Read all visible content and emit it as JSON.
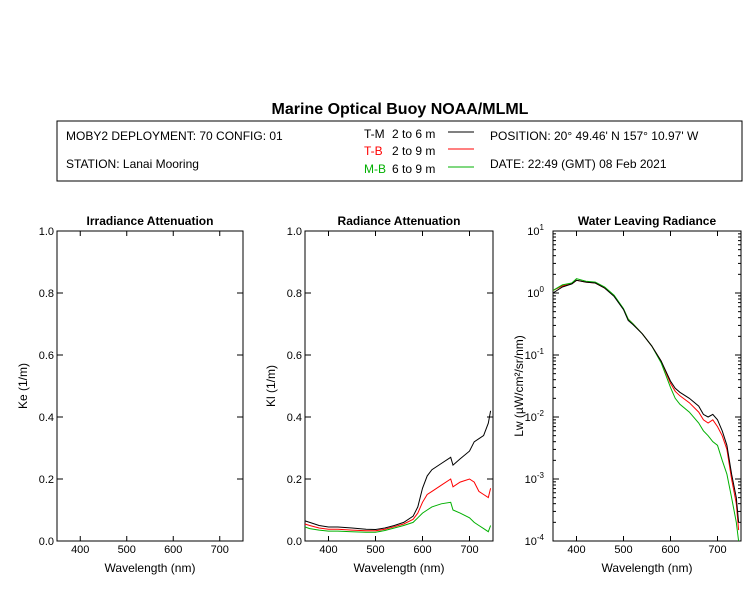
{
  "title": "Marine Optical Buoy NOAA/MLML",
  "header": {
    "deployment": "MOBY2 DEPLOYMENT: 70 CONFIG: 01",
    "station": "STATION: Lanai Mooring",
    "position": "POSITION: 20° 49.46' N   157° 10.97' W",
    "date": "DATE: 22:49 (GMT) 08 Feb 2021",
    "legend": [
      {
        "code": "T-M",
        "range": "2 to 6  m",
        "color": "#000000"
      },
      {
        "code": "T-B",
        "range": "2 to 9  m",
        "color": "#ff0000"
      },
      {
        "code": "M-B",
        "range": "6 to 9  m",
        "color": "#00b000"
      }
    ]
  },
  "chart_data": [
    {
      "type": "line",
      "title": "Irradiance Attenuation",
      "xlabel": "Wavelength (nm)",
      "ylabel": "Ke  (1/m)",
      "xlim": [
        350,
        750
      ],
      "ylim": [
        0,
        1
      ],
      "xticks": [
        400,
        500,
        600,
        700
      ],
      "yticks": [
        "0.0",
        "0.2",
        "0.4",
        "0.6",
        "0.8",
        "1.0"
      ],
      "series": []
    },
    {
      "type": "line",
      "title": "Radiance Attenuation",
      "xlabel": "Wavelength (nm)",
      "ylabel": "Kl  (1/m)",
      "xlim": [
        350,
        750
      ],
      "ylim": [
        0,
        1
      ],
      "xticks": [
        400,
        500,
        600,
        700
      ],
      "yticks": [
        "0.0",
        "0.2",
        "0.4",
        "0.6",
        "0.8",
        "1.0"
      ],
      "series": [
        {
          "name": "T-M",
          "color": "#000000",
          "x": [
            350,
            360,
            380,
            400,
            420,
            450,
            480,
            500,
            520,
            540,
            560,
            580,
            590,
            600,
            610,
            620,
            640,
            660,
            665,
            680,
            700,
            710,
            720,
            730,
            740,
            745
          ],
          "y": [
            0.065,
            0.06,
            0.05,
            0.045,
            0.045,
            0.042,
            0.038,
            0.037,
            0.042,
            0.05,
            0.06,
            0.08,
            0.11,
            0.17,
            0.21,
            0.23,
            0.25,
            0.27,
            0.245,
            0.265,
            0.29,
            0.32,
            0.33,
            0.34,
            0.38,
            0.42
          ]
        },
        {
          "name": "T-B",
          "color": "#ff0000",
          "x": [
            350,
            360,
            380,
            400,
            420,
            450,
            480,
            500,
            520,
            540,
            560,
            580,
            590,
            600,
            610,
            620,
            640,
            660,
            665,
            680,
            700,
            710,
            720,
            730,
            740,
            745
          ],
          "y": [
            0.055,
            0.05,
            0.042,
            0.038,
            0.038,
            0.035,
            0.033,
            0.033,
            0.038,
            0.046,
            0.055,
            0.07,
            0.09,
            0.125,
            0.15,
            0.16,
            0.18,
            0.2,
            0.175,
            0.19,
            0.2,
            0.19,
            0.16,
            0.15,
            0.14,
            0.17
          ]
        },
        {
          "name": "M-B",
          "color": "#00b000",
          "x": [
            350,
            360,
            380,
            400,
            420,
            450,
            480,
            500,
            520,
            540,
            560,
            580,
            590,
            600,
            610,
            620,
            640,
            660,
            665,
            680,
            700,
            710,
            720,
            730,
            740,
            745
          ],
          "y": [
            0.045,
            0.04,
            0.035,
            0.032,
            0.032,
            0.03,
            0.028,
            0.028,
            0.034,
            0.042,
            0.05,
            0.06,
            0.075,
            0.09,
            0.1,
            0.11,
            0.12,
            0.125,
            0.1,
            0.09,
            0.075,
            0.06,
            0.05,
            0.04,
            0.03,
            0.05
          ]
        }
      ]
    },
    {
      "type": "line",
      "title": "Water Leaving Radiance",
      "xlabel": "Wavelength (nm)",
      "ylabel": "Lw  (µW/cm²/sr/nm)",
      "yscale": "log",
      "xlim": [
        350,
        750
      ],
      "ylim": [
        0.0001,
        10
      ],
      "xticks": [
        400,
        500,
        600,
        700
      ],
      "yticks": [
        {
          "base": "10",
          "exp": "1"
        },
        {
          "base": "10",
          "exp": "0"
        },
        {
          "base": "10",
          "exp": "-1"
        },
        {
          "base": "10",
          "exp": "-2"
        },
        {
          "base": "10",
          "exp": "-3"
        },
        {
          "base": "10",
          "exp": "-4"
        }
      ],
      "series": [
        {
          "name": "T-B",
          "color": "#ff0000",
          "x": [
            350,
            370,
            390,
            400,
            420,
            440,
            460,
            480,
            500,
            510,
            520,
            540,
            560,
            580,
            600,
            610,
            620,
            640,
            660,
            670,
            680,
            690,
            700,
            710,
            720,
            730,
            740,
            745
          ],
          "y": [
            1.1,
            1.3,
            1.4,
            1.6,
            1.5,
            1.45,
            1.2,
            0.9,
            0.55,
            0.38,
            0.32,
            0.22,
            0.14,
            0.08,
            0.035,
            0.026,
            0.022,
            0.017,
            0.012,
            0.009,
            0.008,
            0.009,
            0.007,
            0.005,
            0.003,
            0.001,
            0.0004,
            0.00015
          ]
        },
        {
          "name": "M-B",
          "color": "#00b000",
          "x": [
            350,
            370,
            390,
            400,
            420,
            440,
            460,
            480,
            500,
            510,
            520,
            540,
            560,
            580,
            600,
            610,
            620,
            640,
            660,
            670,
            680,
            690,
            700,
            710,
            720,
            730,
            740,
            745
          ],
          "y": [
            1.1,
            1.35,
            1.45,
            1.7,
            1.55,
            1.5,
            1.25,
            0.92,
            0.56,
            0.38,
            0.32,
            0.22,
            0.14,
            0.075,
            0.03,
            0.02,
            0.016,
            0.012,
            0.008,
            0.006,
            0.005,
            0.004,
            0.0035,
            0.002,
            0.0012,
            0.0005,
            0.0002,
            0.0001
          ]
        },
        {
          "name": "T-M",
          "color": "#000000",
          "x": [
            350,
            370,
            390,
            400,
            420,
            440,
            460,
            480,
            500,
            510,
            520,
            540,
            560,
            580,
            600,
            610,
            620,
            640,
            660,
            670,
            680,
            690,
            700,
            710,
            720,
            730,
            740,
            745
          ],
          "y": [
            1.0,
            1.25,
            1.4,
            1.6,
            1.5,
            1.45,
            1.2,
            0.88,
            0.54,
            0.36,
            0.31,
            0.22,
            0.14,
            0.08,
            0.038,
            0.029,
            0.025,
            0.02,
            0.015,
            0.011,
            0.01,
            0.011,
            0.009,
            0.006,
            0.0035,
            0.0012,
            0.0005,
            0.0002
          ]
        }
      ]
    }
  ]
}
